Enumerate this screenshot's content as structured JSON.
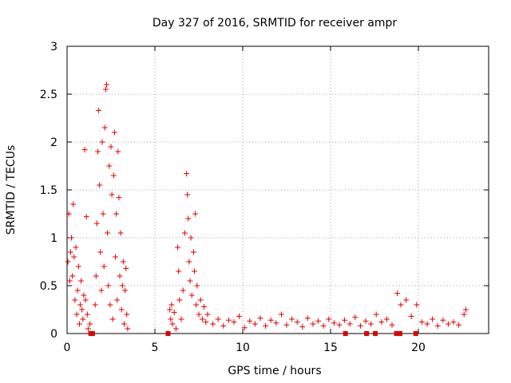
{
  "chart_data": {
    "type": "scatter",
    "title": "Day 327 of 2016, SRMTID for receiver ampr",
    "xlabel": "GPS time / hours",
    "ylabel": "SRMTID / TECUs",
    "xlim": [
      0,
      24
    ],
    "ylim": [
      0,
      3
    ],
    "xticks": [
      0,
      5,
      10,
      15,
      20
    ],
    "yticks": [
      0,
      0.5,
      1,
      1.5,
      2,
      2.5,
      3
    ],
    "xtick_labels": [
      "0",
      "5",
      "10",
      "15",
      "20"
    ],
    "ytick_labels": [
      "0",
      "0.5",
      "1",
      "1.5",
      "2",
      "2.5",
      "3"
    ],
    "grid": true,
    "marker": "plus",
    "series": [
      {
        "name": "SRMTID",
        "color": "#e00000",
        "points": [
          [
            0.05,
            0.75
          ],
          [
            0.1,
            1.25
          ],
          [
            0.15,
            0.55
          ],
          [
            0.2,
            0.85
          ],
          [
            0.25,
            1.0
          ],
          [
            0.3,
            0.6
          ],
          [
            0.35,
            1.35
          ],
          [
            0.4,
            0.8
          ],
          [
            0.45,
            0.35
          ],
          [
            0.5,
            0.9
          ],
          [
            0.55,
            0.2
          ],
          [
            0.6,
            0.45
          ],
          [
            0.65,
            0.7
          ],
          [
            0.7,
            0.1
          ],
          [
            0.75,
            0.3
          ],
          [
            0.8,
            0.55
          ],
          [
            0.85,
            0.25
          ],
          [
            0.9,
            0.15
          ],
          [
            0.95,
            0.4
          ],
          [
            1.0,
            1.92
          ],
          [
            1.05,
            0.35
          ],
          [
            1.1,
            1.22
          ],
          [
            1.15,
            0.2
          ],
          [
            1.2,
            0.05
          ],
          [
            1.3,
            0.1
          ],
          [
            1.6,
            0.3
          ],
          [
            1.65,
            0.6
          ],
          [
            1.7,
            1.15
          ],
          [
            1.75,
            1.9
          ],
          [
            1.8,
            2.33
          ],
          [
            1.85,
            1.55
          ],
          [
            1.9,
            0.85
          ],
          [
            1.95,
            0.45
          ],
          [
            2.0,
            2.0
          ],
          [
            2.05,
            1.25
          ],
          [
            2.1,
            0.7
          ],
          [
            2.15,
            2.15
          ],
          [
            2.2,
            2.55
          ],
          [
            2.25,
            2.6
          ],
          [
            2.3,
            1.05
          ],
          [
            2.35,
            0.5
          ],
          [
            2.4,
            1.75
          ],
          [
            2.45,
            0.3
          ],
          [
            2.5,
            1.95
          ],
          [
            2.55,
            1.45
          ],
          [
            2.6,
            0.15
          ],
          [
            2.65,
            1.65
          ],
          [
            2.7,
            2.1
          ],
          [
            2.75,
            0.8
          ],
          [
            2.8,
            1.25
          ],
          [
            2.85,
            0.35
          ],
          [
            2.9,
            1.9
          ],
          [
            2.95,
            1.42
          ],
          [
            3.0,
            0.6
          ],
          [
            3.05,
            1.05
          ],
          [
            3.1,
            0.25
          ],
          [
            3.15,
            0.5
          ],
          [
            3.2,
            0.75
          ],
          [
            3.25,
            0.1
          ],
          [
            3.3,
            0.45
          ],
          [
            3.35,
            0.68
          ],
          [
            3.4,
            0.2
          ],
          [
            3.45,
            0.05
          ],
          [
            5.85,
            0.25
          ],
          [
            5.9,
            0.15
          ],
          [
            5.95,
            0.3
          ],
          [
            6.0,
            0.1
          ],
          [
            6.1,
            0.22
          ],
          [
            6.2,
            0.05
          ],
          [
            6.3,
            0.9
          ],
          [
            6.35,
            0.65
          ],
          [
            6.4,
            0.35
          ],
          [
            6.5,
            0.15
          ],
          [
            6.6,
            0.45
          ],
          [
            6.7,
            1.05
          ],
          [
            6.8,
            1.67
          ],
          [
            6.85,
            1.45
          ],
          [
            6.9,
            1.2
          ],
          [
            6.95,
            0.75
          ],
          [
            7.0,
            0.55
          ],
          [
            7.05,
            1.0
          ],
          [
            7.1,
            0.4
          ],
          [
            7.2,
            0.85
          ],
          [
            7.25,
            0.65
          ],
          [
            7.3,
            1.25
          ],
          [
            7.35,
            0.3
          ],
          [
            7.4,
            0.5
          ],
          [
            7.5,
            0.2
          ],
          [
            7.6,
            0.35
          ],
          [
            7.7,
            0.15
          ],
          [
            7.8,
            0.28
          ],
          [
            7.9,
            0.12
          ],
          [
            8.0,
            0.2
          ],
          [
            8.3,
            0.1
          ],
          [
            8.6,
            0.15
          ],
          [
            8.9,
            0.08
          ],
          [
            9.2,
            0.14
          ],
          [
            9.5,
            0.12
          ],
          [
            9.8,
            0.18
          ],
          [
            10.1,
            0.06
          ],
          [
            10.4,
            0.13
          ],
          [
            10.7,
            0.1
          ],
          [
            11.0,
            0.16
          ],
          [
            11.3,
            0.08
          ],
          [
            11.6,
            0.14
          ],
          [
            11.9,
            0.11
          ],
          [
            12.2,
            0.2
          ],
          [
            12.5,
            0.09
          ],
          [
            12.8,
            0.15
          ],
          [
            13.1,
            0.12
          ],
          [
            13.4,
            0.07
          ],
          [
            13.7,
            0.16
          ],
          [
            14.0,
            0.1
          ],
          [
            14.3,
            0.13
          ],
          [
            14.6,
            0.08
          ],
          [
            14.9,
            0.15
          ],
          [
            15.2,
            0.11
          ],
          [
            15.5,
            0.09
          ],
          [
            15.8,
            0.14
          ],
          [
            16.1,
            0.1
          ],
          [
            16.4,
            0.17
          ],
          [
            16.7,
            0.08
          ],
          [
            17.0,
            0.13
          ],
          [
            17.3,
            0.1
          ],
          [
            17.6,
            0.2
          ],
          [
            17.9,
            0.12
          ],
          [
            18.2,
            0.15
          ],
          [
            18.5,
            0.09
          ],
          [
            18.8,
            0.42
          ],
          [
            19.0,
            0.3
          ],
          [
            19.3,
            0.35
          ],
          [
            19.6,
            0.18
          ],
          [
            19.9,
            0.3
          ],
          [
            20.2,
            0.12
          ],
          [
            20.5,
            0.1
          ],
          [
            20.8,
            0.15
          ],
          [
            21.1,
            0.08
          ],
          [
            21.4,
            0.14
          ],
          [
            21.7,
            0.1
          ],
          [
            22.0,
            0.12
          ],
          [
            22.3,
            0.09
          ],
          [
            22.6,
            0.2
          ],
          [
            22.7,
            0.25
          ]
        ]
      }
    ],
    "zero_markers": [
      1.35,
      1.45,
      5.75,
      15.85,
      17.05,
      17.55,
      18.75,
      18.95,
      19.85
    ]
  }
}
